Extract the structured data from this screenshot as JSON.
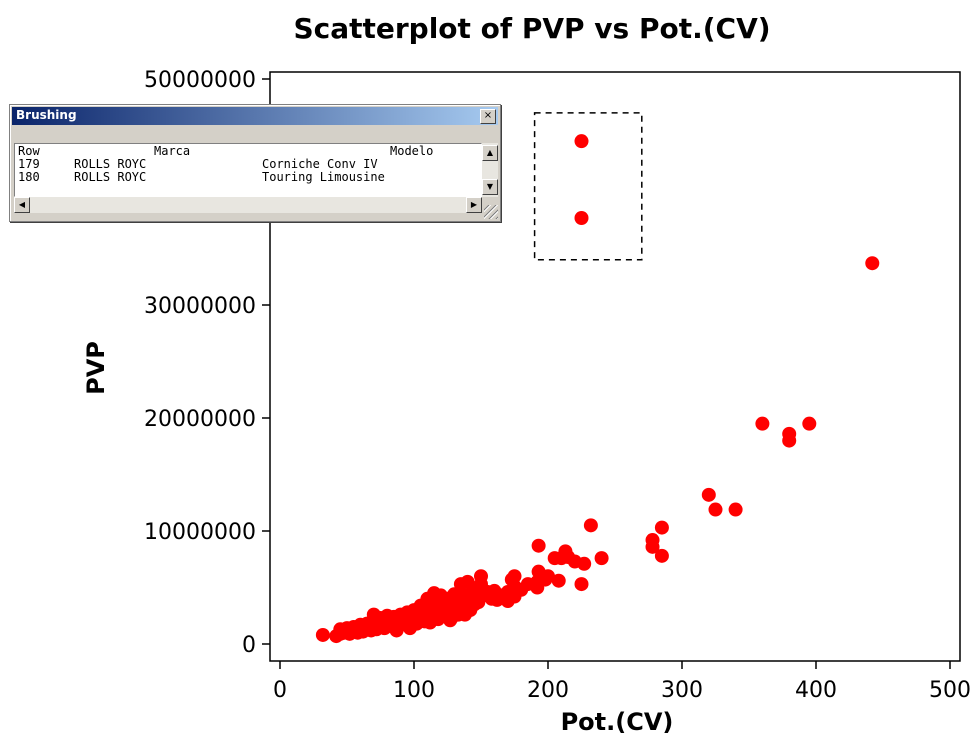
{
  "chart_data": {
    "type": "scatter",
    "title": "Scatterplot of PVP vs Pot.(CV)",
    "xlabel": "Pot.(CV)",
    "ylabel": "PVP",
    "xlim": [
      0,
      500
    ],
    "ylim": [
      0,
      50000000
    ],
    "x_ticks": [
      "0",
      "100",
      "200",
      "300",
      "400",
      "500"
    ],
    "y_ticks": [
      "0",
      "10000000",
      "20000000",
      "30000000",
      "40000000",
      "50000000"
    ],
    "marker_color": "#ff0000",
    "grid": false,
    "brushed_region": {
      "x": [
        190,
        270
      ],
      "y": [
        34000000,
        47000000
      ]
    },
    "points": [
      [
        225,
        44500000
      ],
      [
        225,
        37700000
      ],
      [
        442,
        33700000
      ],
      [
        360,
        19500000
      ],
      [
        380,
        18600000
      ],
      [
        380,
        18000000
      ],
      [
        395,
        19500000
      ],
      [
        320,
        13200000
      ],
      [
        325,
        11900000
      ],
      [
        340,
        11900000
      ],
      [
        278,
        9200000
      ],
      [
        278,
        8600000
      ],
      [
        285,
        10300000
      ],
      [
        285,
        7800000
      ],
      [
        232,
        10500000
      ],
      [
        240,
        7600000
      ],
      [
        227,
        7100000
      ],
      [
        225,
        5300000
      ],
      [
        220,
        7300000
      ],
      [
        215,
        7700000
      ],
      [
        213,
        8200000
      ],
      [
        210,
        7600000
      ],
      [
        208,
        5600000
      ],
      [
        205,
        7600000
      ],
      [
        200,
        6000000
      ],
      [
        198,
        5700000
      ],
      [
        193,
        8700000
      ],
      [
        193,
        6400000
      ],
      [
        192,
        5500000
      ],
      [
        192,
        5000000
      ],
      [
        175,
        6000000
      ],
      [
        175,
        5100000
      ],
      [
        175,
        4200000
      ],
      [
        173,
        5700000
      ],
      [
        170,
        4600000
      ],
      [
        170,
        3800000
      ],
      [
        165,
        4300000
      ],
      [
        160,
        4700000
      ],
      [
        158,
        4000000
      ],
      [
        155,
        4600000
      ],
      [
        150,
        6000000
      ],
      [
        150,
        5300000
      ],
      [
        150,
        4200000
      ],
      [
        148,
        3700000
      ],
      [
        145,
        4700000
      ],
      [
        145,
        3500000
      ],
      [
        140,
        5500000
      ],
      [
        140,
        4300000
      ],
      [
        140,
        3300000
      ],
      [
        138,
        2600000
      ],
      [
        135,
        5300000
      ],
      [
        135,
        4200000
      ],
      [
        135,
        3400000
      ],
      [
        133,
        2600000
      ],
      [
        130,
        4400000
      ],
      [
        130,
        3700000
      ],
      [
        130,
        2900000
      ],
      [
        128,
        2300000
      ],
      [
        125,
        4000000
      ],
      [
        125,
        3400000
      ],
      [
        125,
        2700000
      ],
      [
        122,
        3800000
      ],
      [
        120,
        4300000
      ],
      [
        120,
        3300000
      ],
      [
        120,
        2600000
      ],
      [
        118,
        2200000
      ],
      [
        115,
        4500000
      ],
      [
        115,
        3600000
      ],
      [
        115,
        2900000
      ],
      [
        113,
        2300000
      ],
      [
        110,
        4000000
      ],
      [
        110,
        3200000
      ],
      [
        110,
        2500000
      ],
      [
        108,
        2000000
      ],
      [
        105,
        3400000
      ],
      [
        105,
        2800000
      ],
      [
        105,
        2200000
      ],
      [
        102,
        1800000
      ],
      [
        100,
        3000000
      ],
      [
        100,
        2500000
      ],
      [
        100,
        2000000
      ],
      [
        98,
        1700000
      ],
      [
        95,
        2800000
      ],
      [
        95,
        2300000
      ],
      [
        95,
        1800000
      ],
      [
        92,
        2100000
      ],
      [
        90,
        2600000
      ],
      [
        90,
        2200000
      ],
      [
        90,
        1700000
      ],
      [
        88,
        1500000
      ],
      [
        85,
        2400000
      ],
      [
        85,
        1900000
      ],
      [
        82,
        1600000
      ],
      [
        80,
        2500000
      ],
      [
        80,
        2100000
      ],
      [
        80,
        1700000
      ],
      [
        78,
        1400000
      ],
      [
        75,
        2300000
      ],
      [
        75,
        1900000
      ],
      [
        75,
        1500000
      ],
      [
        72,
        1300000
      ],
      [
        70,
        2600000
      ],
      [
        70,
        2000000
      ],
      [
        70,
        1600000
      ],
      [
        68,
        1200000
      ],
      [
        65,
        1800000
      ],
      [
        65,
        1400000
      ],
      [
        62,
        1100000
      ],
      [
        60,
        1700000
      ],
      [
        60,
        1300000
      ],
      [
        58,
        1000000
      ],
      [
        55,
        1500000
      ],
      [
        55,
        1100000
      ],
      [
        52,
        900000
      ],
      [
        50,
        1400000
      ],
      [
        48,
        1000000
      ],
      [
        45,
        1300000
      ],
      [
        45,
        900000
      ],
      [
        42,
        700000
      ],
      [
        32,
        800000
      ],
      [
        185,
        5300000
      ],
      [
        180,
        4800000
      ],
      [
        162,
        3900000
      ],
      [
        142,
        3000000
      ],
      [
        127,
        2100000
      ],
      [
        112,
        1900000
      ],
      [
        97,
        1400000
      ],
      [
        87,
        1200000
      ]
    ]
  },
  "brushing": {
    "title": "Brushing",
    "close_glyph": "×",
    "columns": [
      "Row",
      "Marca",
      "Modelo"
    ],
    "rows": [
      [
        "179",
        "ROLLS ROYC",
        "Corniche Conv IV"
      ],
      [
        "180",
        "ROLLS ROYC",
        "Touring Limousine"
      ]
    ],
    "scroll_up_glyph": "▲",
    "scroll_down_glyph": "▼",
    "scroll_left_glyph": "◀",
    "scroll_right_glyph": "▶"
  }
}
